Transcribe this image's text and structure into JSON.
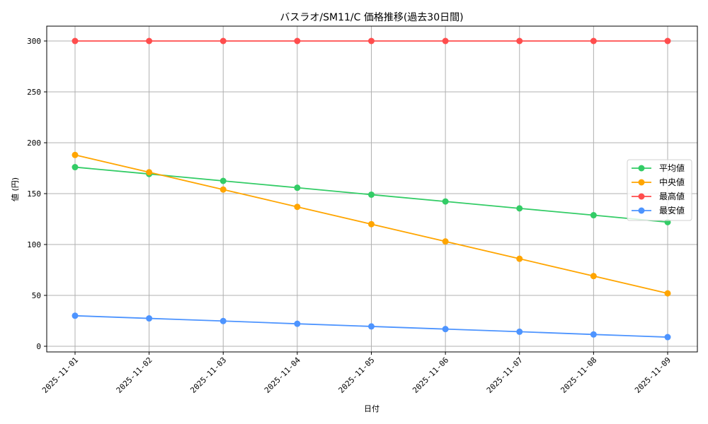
{
  "chart_data": {
    "type": "line",
    "title": "バスラオ/SM11/C 価格推移(過去30日間)",
    "xlabel": "日付",
    "ylabel": "値 (円)",
    "ylim": [
      -5,
      315
    ],
    "yticks": [
      0,
      50,
      100,
      150,
      200,
      250,
      300
    ],
    "grid": true,
    "legend_position": "center right",
    "categories": [
      "2025-11-01",
      "2025-11-02",
      "2025-11-03",
      "2025-11-04",
      "2025-11-05",
      "2025-11-06",
      "2025-11-07",
      "2025-11-08",
      "2025-11-09"
    ],
    "series": [
      {
        "name": "平均値",
        "color": "#33cc66",
        "values": [
          176,
          169.3,
          162.5,
          155.8,
          149,
          142.3,
          135.5,
          128.8,
          122
        ]
      },
      {
        "name": "中央値",
        "color": "#ffa500",
        "values": [
          188,
          171,
          154,
          137,
          120,
          103,
          86,
          69,
          52
        ]
      },
      {
        "name": "最高値",
        "color": "#ff4d4d",
        "values": [
          300,
          300,
          300,
          300,
          300,
          300,
          300,
          300,
          300
        ]
      },
      {
        "name": "最安値",
        "color": "#4d94ff",
        "values": [
          30,
          27.4,
          24.8,
          22.1,
          19.5,
          16.9,
          14.3,
          11.6,
          9
        ]
      }
    ]
  }
}
